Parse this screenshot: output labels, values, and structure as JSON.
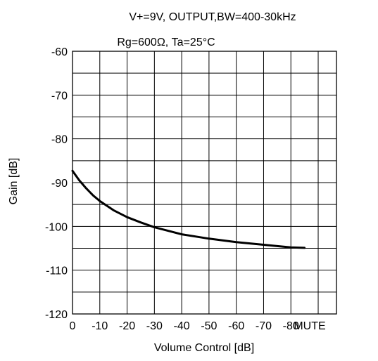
{
  "chart_data": {
    "type": "line",
    "title_lines": [
      "V+=9V, OUTPUT,BW=400-30kHz",
      "Rg=600Ω, Ta=25°C"
    ],
    "xlabel": "Volume Control [dB]",
    "ylabel": "Gain   [dB]",
    "x_tick_labels": [
      "0",
      "-10",
      "-20",
      "-30",
      "-40",
      "-50",
      "-60",
      "-70",
      "-80",
      "MUTE"
    ],
    "y_tick_labels": [
      "-60",
      "-70",
      "-80",
      "-90",
      "-100",
      "-110",
      "-120"
    ],
    "ylim": [
      -120,
      -60
    ],
    "grid": true,
    "series": [
      {
        "color": "#000000",
        "points": [
          {
            "x": 0,
            "y": -87.3
          },
          {
            "x": -2.5,
            "y": -89.5
          },
          {
            "x": -5,
            "y": -91.3
          },
          {
            "x": -7.5,
            "y": -92.9
          },
          {
            "x": -10,
            "y": -94.2
          },
          {
            "x": -15,
            "y": -96.3
          },
          {
            "x": -20,
            "y": -97.9
          },
          {
            "x": -25,
            "y": -99.1
          },
          {
            "x": -30,
            "y": -100.2
          },
          {
            "x": -35,
            "y": -101.0
          },
          {
            "x": -40,
            "y": -101.8
          },
          {
            "x": -45,
            "y": -102.3
          },
          {
            "x": -50,
            "y": -102.8
          },
          {
            "x": -55,
            "y": -103.2
          },
          {
            "x": -60,
            "y": -103.6
          },
          {
            "x": -65,
            "y": -103.9
          },
          {
            "x": -70,
            "y": -104.2
          },
          {
            "x": -75,
            "y": -104.5
          },
          {
            "x": -80,
            "y": -104.8
          },
          {
            "x": -85,
            "y": -104.9
          }
        ]
      }
    ]
  }
}
